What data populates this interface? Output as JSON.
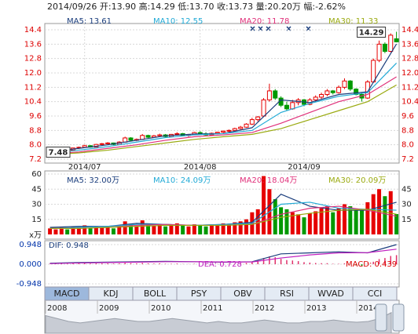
{
  "chart_data": {
    "type": "candlestick",
    "title": "2014/09/26 开:13.90 高:14.29 低:13.70 收:13.73 量:20.20万 幅:-2.62%",
    "categories": [
      null,
      null,
      null,
      null,
      null,
      null,
      "2014/07",
      null,
      null,
      null,
      null,
      null,
      null,
      null,
      null,
      null,
      null,
      null,
      null,
      null,
      null,
      null,
      null,
      null,
      null,
      null,
      "2014/08",
      null,
      null,
      null,
      null,
      null,
      null,
      null,
      null,
      null,
      null,
      null,
      null,
      null,
      null,
      null,
      null,
      null,
      "2014/09",
      null,
      null,
      null,
      null,
      null,
      null,
      null,
      null,
      null,
      null,
      null,
      null,
      null,
      null,
      null,
      null
    ],
    "candles": [
      [
        7.55,
        7.62,
        7.48,
        7.58
      ],
      [
        7.58,
        7.66,
        7.55,
        7.63
      ],
      [
        7.63,
        7.75,
        7.6,
        7.72
      ],
      [
        7.72,
        7.8,
        7.66,
        7.7
      ],
      [
        7.7,
        7.85,
        7.68,
        7.82
      ],
      [
        7.82,
        7.9,
        7.76,
        7.86
      ],
      [
        7.86,
        8.0,
        7.82,
        7.95
      ],
      [
        7.95,
        7.98,
        7.84,
        7.87
      ],
      [
        7.87,
        8.05,
        7.85,
        8.02
      ],
      [
        8.02,
        8.1,
        7.95,
        8.06
      ],
      [
        8.06,
        8.15,
        8.0,
        8.1
      ],
      [
        8.1,
        8.12,
        7.98,
        8.02
      ],
      [
        8.02,
        8.2,
        8.0,
        8.15
      ],
      [
        8.15,
        8.45,
        8.12,
        8.38
      ],
      [
        8.38,
        8.42,
        8.2,
        8.25
      ],
      [
        8.25,
        8.35,
        8.2,
        8.3
      ],
      [
        8.3,
        8.6,
        8.28,
        8.52
      ],
      [
        8.52,
        8.56,
        8.38,
        8.42
      ],
      [
        8.42,
        8.55,
        8.4,
        8.5
      ],
      [
        8.5,
        8.62,
        8.45,
        8.55
      ],
      [
        8.55,
        8.6,
        8.42,
        8.46
      ],
      [
        8.46,
        8.6,
        8.44,
        8.58
      ],
      [
        8.58,
        8.7,
        8.52,
        8.62
      ],
      [
        8.62,
        8.66,
        8.48,
        8.52
      ],
      [
        8.52,
        8.6,
        8.45,
        8.56
      ],
      [
        8.56,
        8.72,
        8.54,
        8.68
      ],
      [
        8.68,
        8.75,
        8.58,
        8.62
      ],
      [
        8.62,
        8.7,
        8.5,
        8.55
      ],
      [
        8.55,
        8.68,
        8.52,
        8.64
      ],
      [
        8.64,
        8.72,
        8.58,
        8.7
      ],
      [
        8.7,
        8.8,
        8.65,
        8.76
      ],
      [
        8.76,
        8.85,
        8.7,
        8.8
      ],
      [
        8.8,
        8.95,
        8.75,
        8.9
      ],
      [
        8.9,
        9.05,
        8.85,
        8.98
      ],
      [
        8.98,
        9.2,
        8.95,
        9.15
      ],
      [
        9.15,
        9.5,
        9.1,
        9.4
      ],
      [
        9.4,
        9.6,
        9.3,
        9.55
      ],
      [
        9.6,
        10.6,
        9.55,
        10.5
      ],
      [
        10.5,
        11.4,
        10.4,
        11.0
      ],
      [
        11.0,
        11.1,
        10.5,
        10.6
      ],
      [
        10.6,
        10.7,
        10.1,
        10.2
      ],
      [
        10.2,
        10.4,
        9.9,
        10.0
      ],
      [
        10.0,
        10.5,
        9.95,
        10.35
      ],
      [
        10.35,
        10.6,
        10.2,
        10.5
      ],
      [
        10.5,
        10.55,
        10.15,
        10.25
      ],
      [
        10.25,
        10.6,
        10.2,
        10.5
      ],
      [
        10.5,
        10.75,
        10.4,
        10.65
      ],
      [
        10.65,
        10.9,
        10.55,
        10.8
      ],
      [
        10.8,
        11.1,
        10.7,
        11.0
      ],
      [
        11.0,
        11.05,
        10.8,
        10.9
      ],
      [
        10.9,
        11.3,
        10.85,
        11.2
      ],
      [
        11.2,
        11.7,
        11.1,
        11.55
      ],
      [
        11.55,
        11.6,
        11.0,
        11.1
      ],
      [
        11.1,
        11.15,
        10.75,
        10.8
      ],
      [
        10.8,
        10.9,
        10.4,
        10.6
      ],
      [
        10.6,
        11.6,
        10.55,
        11.5
      ],
      [
        11.5,
        12.8,
        11.45,
        12.7
      ],
      [
        12.7,
        13.8,
        12.6,
        13.6
      ],
      [
        13.6,
        13.7,
        13.1,
        13.2
      ],
      [
        13.2,
        14.2,
        13.15,
        14.1
      ],
      [
        13.9,
        14.29,
        13.7,
        13.73
      ]
    ],
    "colors": {
      "up": "#e60000",
      "down": "#009900"
    },
    "ylim": [
      7.2,
      14.4
    ],
    "yticks": [
      7.2,
      {
        "value": 8,
        "label": "8.0"
      },
      8.8,
      9.6,
      10.4,
      11.2,
      {
        "value": 12,
        "label": "12.0"
      },
      12.8,
      13.6,
      14.4
    ],
    "high_label": 14.29,
    "low_label": 7.48,
    "line_x": [
      0,
      5,
      10,
      15,
      20,
      25,
      30,
      35,
      40,
      45,
      50,
      55,
      60
    ],
    "ma_lines": [
      {
        "name": "MA5: 13.61",
        "color": "#1a3d7c",
        "values": [
          7.6,
          7.8,
          8.0,
          8.25,
          8.5,
          8.6,
          8.62,
          8.95,
          10.5,
          10.35,
          10.8,
          10.95,
          13.61
        ]
      },
      {
        "name": "MA10: 12.55",
        "color": "#22aad6",
        "values": [
          7.55,
          7.7,
          7.9,
          8.15,
          8.4,
          8.55,
          8.62,
          8.8,
          9.8,
          10.3,
          10.7,
          10.9,
          12.55
        ]
      },
      {
        "name": "MA20: 11.78",
        "color": "#e0307a",
        "values": [
          7.5,
          7.6,
          7.8,
          8.0,
          8.25,
          8.45,
          8.55,
          8.68,
          9.2,
          9.8,
          10.4,
          10.8,
          11.78
        ]
      },
      {
        "name": "MA30: 11.33",
        "color": "#9aaa10",
        "values": [
          7.45,
          7.55,
          7.7,
          7.9,
          8.1,
          8.3,
          8.45,
          8.58,
          8.9,
          9.4,
          9.9,
          10.4,
          11.33
        ]
      }
    ],
    "volume": {
      "values": [
        6,
        5,
        7,
        5,
        8,
        7,
        9,
        6,
        8,
        7,
        8,
        6,
        9,
        13,
        10,
        8,
        14,
        10,
        9,
        10,
        8,
        9,
        11,
        9,
        8,
        10,
        9,
        8,
        9,
        10,
        11,
        10,
        12,
        13,
        15,
        22,
        25,
        58,
        45,
        35,
        27,
        25,
        22,
        20,
        17,
        21,
        23,
        26,
        28,
        22,
        26,
        30,
        28,
        25,
        24,
        32,
        40,
        45,
        38,
        43,
        20.2
      ],
      "ylim": [
        0,
        60
      ],
      "yticks": [
        15,
        30,
        45,
        60
      ],
      "right_yticks": [
        15,
        30,
        45
      ],
      "unit": "x万",
      "ma_lines": [
        {
          "name": "MA5: 32.00万",
          "color": "#1a3d7c",
          "values": [
            7,
            8,
            8,
            11,
            10,
            9,
            10,
            12,
            40,
            28,
            24,
            24,
            32
          ]
        },
        {
          "name": "MA10: 24.09万",
          "color": "#22aad6",
          "values": [
            6,
            7,
            8,
            10,
            10,
            9,
            10,
            11,
            30,
            32,
            26,
            25,
            24.09
          ]
        },
        {
          "name": "MA20: 18.04万",
          "color": "#e0307a",
          "values": [
            6,
            6,
            7,
            9,
            10,
            9,
            9,
            10,
            20,
            26,
            28,
            24,
            18.04
          ]
        },
        {
          "name": "MA30: 20.09万",
          "color": "#9aaa10",
          "values": [
            6,
            6,
            7,
            8,
            9,
            9,
            9,
            10,
            17,
            21,
            24,
            25,
            20.09
          ]
        }
      ]
    },
    "macd": {
      "ylim": [
        -0.948,
        0.948
      ],
      "yticks": [
        -0.948,
        {
          "value": 0,
          "label": "0.000"
        },
        0.948
      ],
      "dif": {
        "name": "DIF: 0.948",
        "color": "#1a3d7c",
        "values": [
          0.05,
          0.08,
          0.1,
          0.12,
          0.14,
          0.12,
          0.1,
          0.12,
          0.5,
          0.55,
          0.6,
          0.55,
          0.948
        ]
      },
      "dea": {
        "name": "DEA: 0.728",
        "color": "#c020c0",
        "values": [
          0.03,
          0.06,
          0.08,
          0.1,
          0.12,
          0.12,
          0.11,
          0.11,
          0.3,
          0.45,
          0.55,
          0.56,
          0.728
        ]
      },
      "bars": {
        "name": "MACD: 0.439",
        "values": [
          0.02,
          0.03,
          0.03,
          0.02,
          0.04,
          0.04,
          0.05,
          0.03,
          0.04,
          0.04,
          0.04,
          0.03,
          0.04,
          0.06,
          0.05,
          0.04,
          0.06,
          0.04,
          0.03,
          0.04,
          0.02,
          0.02,
          0.03,
          0.01,
          0.01,
          0.02,
          0.0,
          -0.01,
          0.0,
          0.01,
          0.02,
          0.02,
          0.03,
          0.04,
          0.06,
          0.1,
          0.14,
          0.3,
          0.38,
          0.34,
          0.26,
          0.2,
          0.18,
          0.15,
          0.1,
          0.08,
          0.06,
          0.05,
          0.05,
          0.02,
          0.02,
          0.04,
          0.0,
          -0.05,
          -0.08,
          0.02,
          0.12,
          0.25,
          0.3,
          0.4,
          0.439
        ]
      }
    },
    "tabs": [
      "MACD",
      "KDJ",
      "BOLL",
      "PSY",
      "OBV",
      "RSI",
      "WVAD",
      "CCI"
    ],
    "selected_tab": 0,
    "overview": {
      "labels": [
        2008,
        2009,
        2010,
        2011,
        2012,
        2013,
        2014
      ],
      "ylim": [
        0,
        16
      ],
      "values": [
        12,
        10,
        8,
        7,
        8,
        9,
        10,
        9,
        8,
        8,
        9,
        10,
        9,
        8,
        7,
        8,
        7,
        7,
        8,
        9,
        8,
        7,
        7,
        8,
        8,
        9,
        8,
        7.5,
        8,
        10,
        14
      ]
    }
  }
}
